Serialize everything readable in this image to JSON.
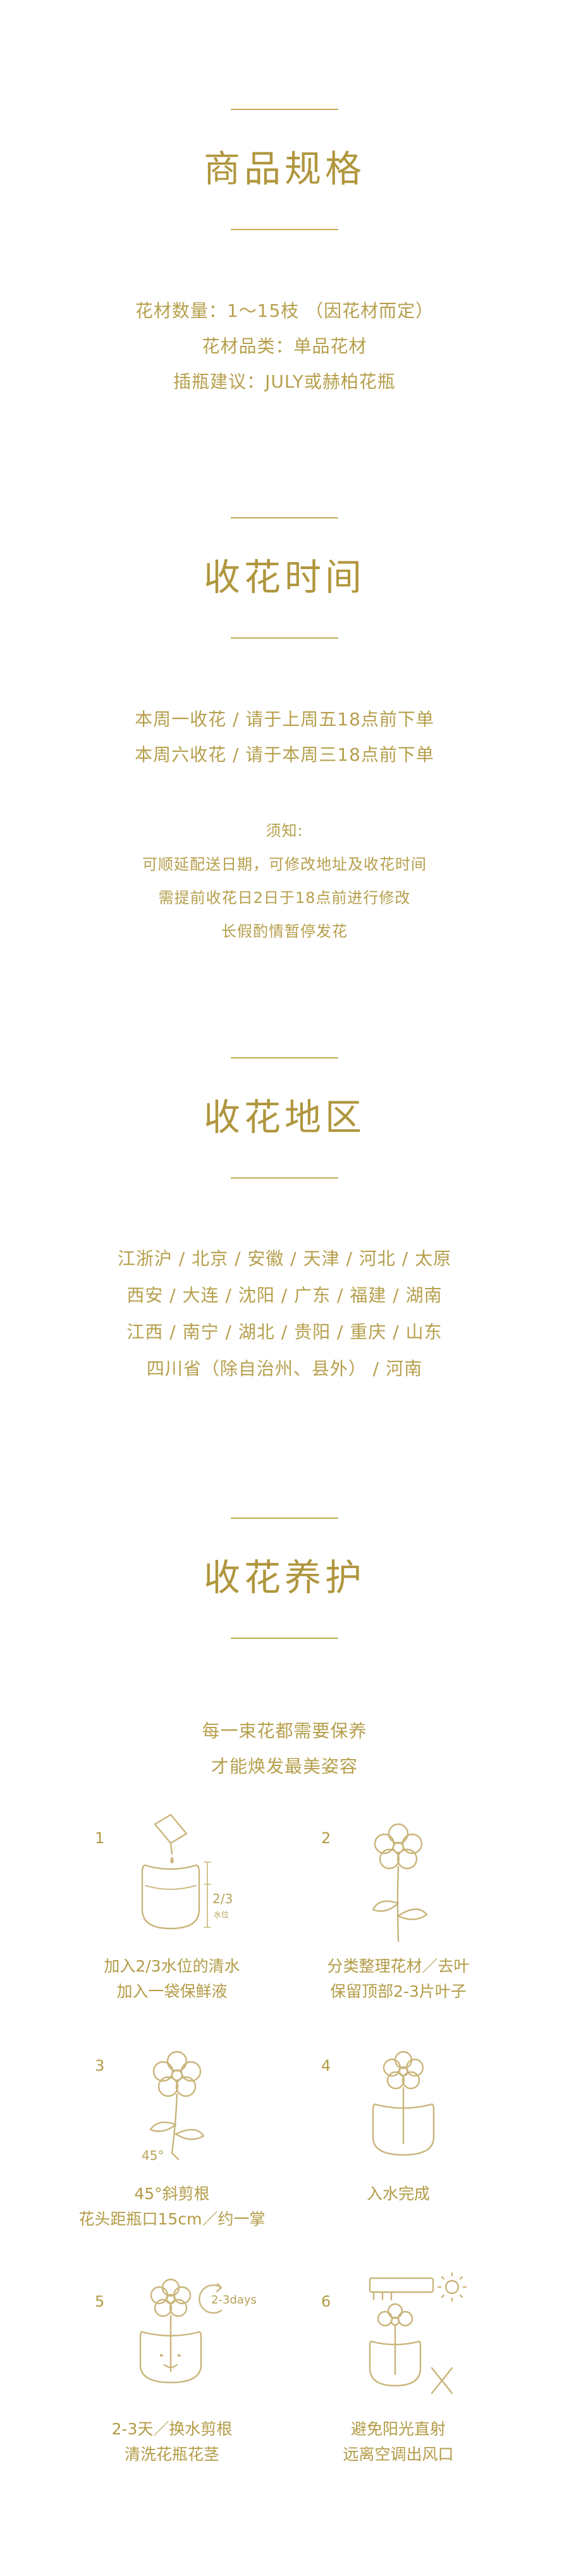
{
  "spec": {
    "title": "商品规格",
    "lines": [
      "花材数量：1～15枝 （因花材而定）",
      "花材品类：单品花材",
      "插瓶建议：JULY或赫柏花瓶"
    ]
  },
  "time": {
    "title": "收花时间",
    "lines": [
      "本周一收花 / 请于上周五18点前下单",
      "本周六收花 / 请于本周三18点前下单"
    ],
    "notice": [
      "须知:",
      "可顺延配送日期，可修改地址及收花时间",
      "需提前收花日2日于18点前进行修改",
      "长假酌情暂停发花"
    ]
  },
  "region": {
    "title": "收花地区",
    "lines": [
      "江浙沪 / 北京 / 安徽 / 天津 / 河北 / 太原",
      "西安 / 大连 / 沈阳 / 广东 / 福建 / 湖南",
      "江西 / 南宁 / 湖北 / 贵阳 / 重庆 / 山东",
      "四川省（除自治州、县外） / 河南"
    ]
  },
  "care": {
    "title": "收花养护",
    "intro": [
      "每一束花都需要保养",
      "才能焕发最美姿容"
    ],
    "steps": [
      {
        "num": "1",
        "lines": [
          "加入2/3水位的清水",
          "加入一袋保鲜液"
        ],
        "icon": "water-bottle-icon",
        "marks": [
          "2/3",
          "水位"
        ]
      },
      {
        "num": "2",
        "lines": [
          "分类整理花材／去叶",
          "保留顶部2-3片叶子"
        ],
        "icon": "flower-leaves-icon",
        "marks": []
      },
      {
        "num": "3",
        "lines": [
          "45°斜剪根",
          "花头距瓶口15cm／约一掌"
        ],
        "icon": "flower-cut-icon",
        "marks": [
          "45°"
        ]
      },
      {
        "num": "4",
        "lines": [
          "入水完成"
        ],
        "icon": "flower-vase-icon",
        "marks": []
      },
      {
        "num": "5",
        "lines": [
          "2-3天／换水剪根",
          "清洗花瓶花茎"
        ],
        "icon": "flower-vase-refresh-icon",
        "marks": [
          "2-3days"
        ]
      },
      {
        "num": "6",
        "lines": [
          "避免阳光直射",
          "远离空调出风口"
        ],
        "icon": "vase-sun-ac-icon",
        "marks": []
      }
    ]
  }
}
